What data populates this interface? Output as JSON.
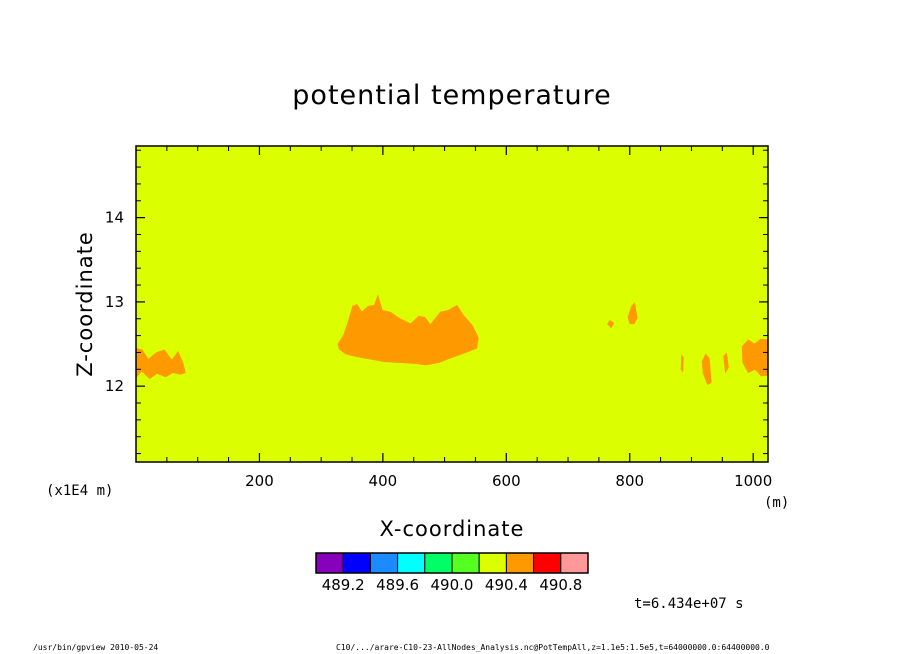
{
  "footer": {
    "left": "/usr/bin/gpview  2010-05-24",
    "right": "C10/.../arare-C10-23-AllNodes_Analysis.nc@PotTempAll,z=1.1e5:1.5e5,t=64000000.0:64400000.0"
  },
  "chart_data": {
    "type": "heatmap",
    "title": "potential temperature",
    "xlabel": "X-coordinate",
    "ylabel": "Z-coordinate",
    "x_unit": "(m)",
    "y_scale_note": "(x1E4 m)",
    "xlim": [
      0,
      1024
    ],
    "ylim": [
      11.1,
      14.85
    ],
    "x_ticks": [
      200,
      400,
      600,
      800,
      1000
    ],
    "x_tick_labels": [
      "200",
      "400",
      "600",
      "800",
      "1000"
    ],
    "y_ticks": [
      12,
      13,
      14
    ],
    "y_tick_labels": [
      "12",
      "13",
      "14"
    ],
    "grid": false,
    "background_level_color": "#dcff00",
    "anomaly_color": "#ff9900",
    "anomaly_regions": [
      {
        "name": "central-plume",
        "polygon": [
          [
            327,
            12.5
          ],
          [
            336,
            12.6
          ],
          [
            343,
            12.75
          ],
          [
            351,
            12.95
          ],
          [
            358,
            12.97
          ],
          [
            366,
            12.88
          ],
          [
            376,
            12.95
          ],
          [
            386,
            12.96
          ],
          [
            392,
            13.08
          ],
          [
            399,
            12.9
          ],
          [
            412,
            12.88
          ],
          [
            428,
            12.8
          ],
          [
            445,
            12.74
          ],
          [
            458,
            12.83
          ],
          [
            468,
            12.82
          ],
          [
            477,
            12.73
          ],
          [
            493,
            12.88
          ],
          [
            506,
            12.9
          ],
          [
            520,
            12.96
          ],
          [
            531,
            12.84
          ],
          [
            545,
            12.72
          ],
          [
            555,
            12.57
          ],
          [
            552,
            12.45
          ],
          [
            535,
            12.4
          ],
          [
            512,
            12.34
          ],
          [
            491,
            12.28
          ],
          [
            470,
            12.25
          ],
          [
            450,
            12.27
          ],
          [
            425,
            12.28
          ],
          [
            402,
            12.29
          ],
          [
            380,
            12.32
          ],
          [
            357,
            12.35
          ],
          [
            340,
            12.38
          ],
          [
            329,
            12.44
          ]
        ]
      },
      {
        "name": "left-edge-patch",
        "polygon": [
          [
            0,
            12.45
          ],
          [
            10,
            12.43
          ],
          [
            20,
            12.32
          ],
          [
            33,
            12.4
          ],
          [
            46,
            12.43
          ],
          [
            58,
            12.31
          ],
          [
            68,
            12.41
          ],
          [
            76,
            12.28
          ],
          [
            80,
            12.16
          ],
          [
            72,
            12.14
          ],
          [
            60,
            12.16
          ],
          [
            48,
            12.11
          ],
          [
            34,
            12.15
          ],
          [
            22,
            12.09
          ],
          [
            9,
            12.18
          ],
          [
            0,
            12.1
          ]
        ]
      },
      {
        "name": "right-edge-patch",
        "polygon": [
          [
            982,
            12.47
          ],
          [
            992,
            12.55
          ],
          [
            1002,
            12.5
          ],
          [
            1012,
            12.56
          ],
          [
            1024,
            12.55
          ],
          [
            1024,
            12.13
          ],
          [
            1013,
            12.12
          ],
          [
            1003,
            12.2
          ],
          [
            992,
            12.16
          ],
          [
            983,
            12.28
          ]
        ]
      },
      {
        "name": "small-streak-810",
        "polygon": [
          [
            797,
            12.82
          ],
          [
            803,
            12.95
          ],
          [
            808,
            12.99
          ],
          [
            812,
            12.81
          ],
          [
            807,
            12.74
          ],
          [
            800,
            12.74
          ]
        ]
      },
      {
        "name": "small-streak-770",
        "polygon": [
          [
            764,
            12.74
          ],
          [
            768,
            12.78
          ],
          [
            774,
            12.75
          ],
          [
            770,
            12.69
          ]
        ]
      },
      {
        "name": "small-streak-920",
        "polygon": [
          [
            917,
            12.29
          ],
          [
            923,
            12.38
          ],
          [
            929,
            12.33
          ],
          [
            932,
            12.04
          ],
          [
            926,
            12.02
          ],
          [
            919,
            12.15
          ]
        ]
      },
      {
        "name": "small-streak-890",
        "polygon": [
          [
            884,
            12.37
          ],
          [
            887,
            12.34
          ],
          [
            886,
            12.17
          ],
          [
            883,
            12.2
          ]
        ]
      },
      {
        "name": "small-streak-958",
        "polygon": [
          [
            952,
            12.36
          ],
          [
            957,
            12.39
          ],
          [
            960,
            12.22
          ],
          [
            955,
            12.16
          ]
        ]
      }
    ],
    "colorbar": {
      "colors": [
        "#8800bb",
        "#0000ff",
        "#1a8cff",
        "#00ffff",
        "#00ff66",
        "#55ff22",
        "#dcff00",
        "#ff9900",
        "#ff0000",
        "#ff9999"
      ],
      "labels": [
        "489.2",
        "489.6",
        "490.0",
        "490.4",
        "490.8"
      ]
    },
    "time_annotation": "t=6.434e+07 s"
  }
}
